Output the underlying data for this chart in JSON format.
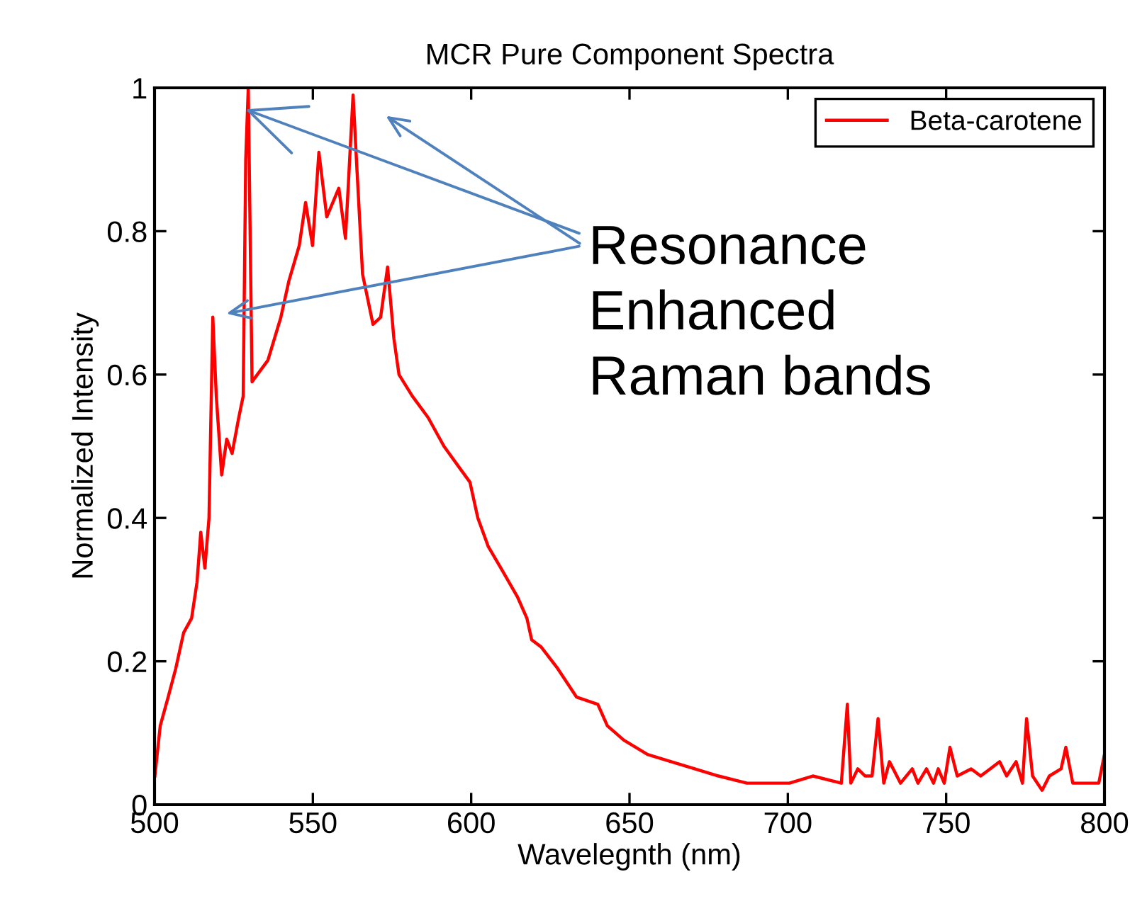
{
  "chart_data": {
    "type": "line",
    "title": "MCR Pure Component Spectra",
    "xlabel": "Wavelegnth (nm)",
    "ylabel": "Normalized Intensity",
    "annotations": [
      {
        "text": "Resonance\nEnhanced\nRaman bands",
        "x": 528.7,
        "y": 0.97
      }
    ],
    "xlim": [
      500,
      800
    ],
    "xticks": [
      500,
      550,
      600,
      650,
      700,
      750,
      800
    ],
    "ylim": [
      0,
      1
    ],
    "yticks": [
      0,
      0.2,
      0.4,
      0.6,
      0.8,
      1
    ],
    "grid": false,
    "legend": "top right",
    "marker": "none",
    "line_style": "solid",
    "series": [
      {
        "name": "Beta-carotene",
        "color": "#ff0000",
        "x": [
          500.1,
          501.8,
          504.3,
          506.7,
          509.2,
          511.7,
          513.4,
          514.6,
          515.9,
          517.2,
          518.4,
          519.5,
          521.2,
          522.8,
          524.5,
          526.6,
          528.0,
          528.8,
          529.6,
          530.8,
          535.8,
          539.9,
          542.4,
          545.7,
          547.7,
          549.9,
          551.9,
          554.4,
          558.2,
          560.3,
          562.7,
          564.0,
          565.7,
          569.0,
          571.4,
          573.6,
          575.6,
          577.2,
          581.4,
          586.4,
          591.4,
          596.3,
          599.6,
          602.1,
          605.4,
          609.4,
          614.6,
          617.6,
          619.1,
          622.1,
          627.3,
          633.3,
          640.0,
          643.0,
          648.2,
          655.7,
          663.2,
          670.6,
          678.1,
          687.1,
          693.0,
          700.5,
          707.9,
          716.9,
          718.8,
          719.9,
          722.1,
          724.4,
          726.6,
          728.5,
          730.3,
          732.1,
          735.6,
          739.3,
          741.1,
          743.8,
          746.0,
          747.5,
          749.4,
          751.2,
          753.5,
          757.9,
          760.9,
          763.9,
          766.9,
          769.1,
          772.1,
          774.1,
          775.4,
          777.3,
          780.3,
          782.6,
          786.3,
          787.8,
          790.0,
          793.0,
          796.7,
          798.2,
          800.0
        ],
        "values": [
          0.04,
          0.11,
          0.15,
          0.19,
          0.24,
          0.26,
          0.31,
          0.38,
          0.33,
          0.4,
          0.68,
          0.57,
          0.46,
          0.51,
          0.49,
          0.54,
          0.57,
          0.9,
          1.0,
          0.59,
          0.62,
          0.68,
          0.73,
          0.78,
          0.84,
          0.78,
          0.91,
          0.82,
          0.86,
          0.79,
          0.99,
          0.88,
          0.74,
          0.67,
          0.68,
          0.75,
          0.65,
          0.6,
          0.57,
          0.54,
          0.5,
          0.47,
          0.45,
          0.4,
          0.36,
          0.33,
          0.29,
          0.26,
          0.23,
          0.22,
          0.19,
          0.15,
          0.14,
          0.11,
          0.09,
          0.07,
          0.06,
          0.05,
          0.04,
          0.03,
          0.03,
          0.03,
          0.04,
          0.03,
          0.14,
          0.03,
          0.05,
          0.04,
          0.04,
          0.12,
          0.03,
          0.06,
          0.03,
          0.05,
          0.03,
          0.05,
          0.03,
          0.05,
          0.03,
          0.08,
          0.04,
          0.05,
          0.04,
          0.05,
          0.06,
          0.04,
          0.06,
          0.03,
          0.12,
          0.04,
          0.02,
          0.04,
          0.05,
          0.08,
          0.03,
          0.03,
          0.03,
          0.03,
          0.07
        ]
      }
    ]
  }
}
